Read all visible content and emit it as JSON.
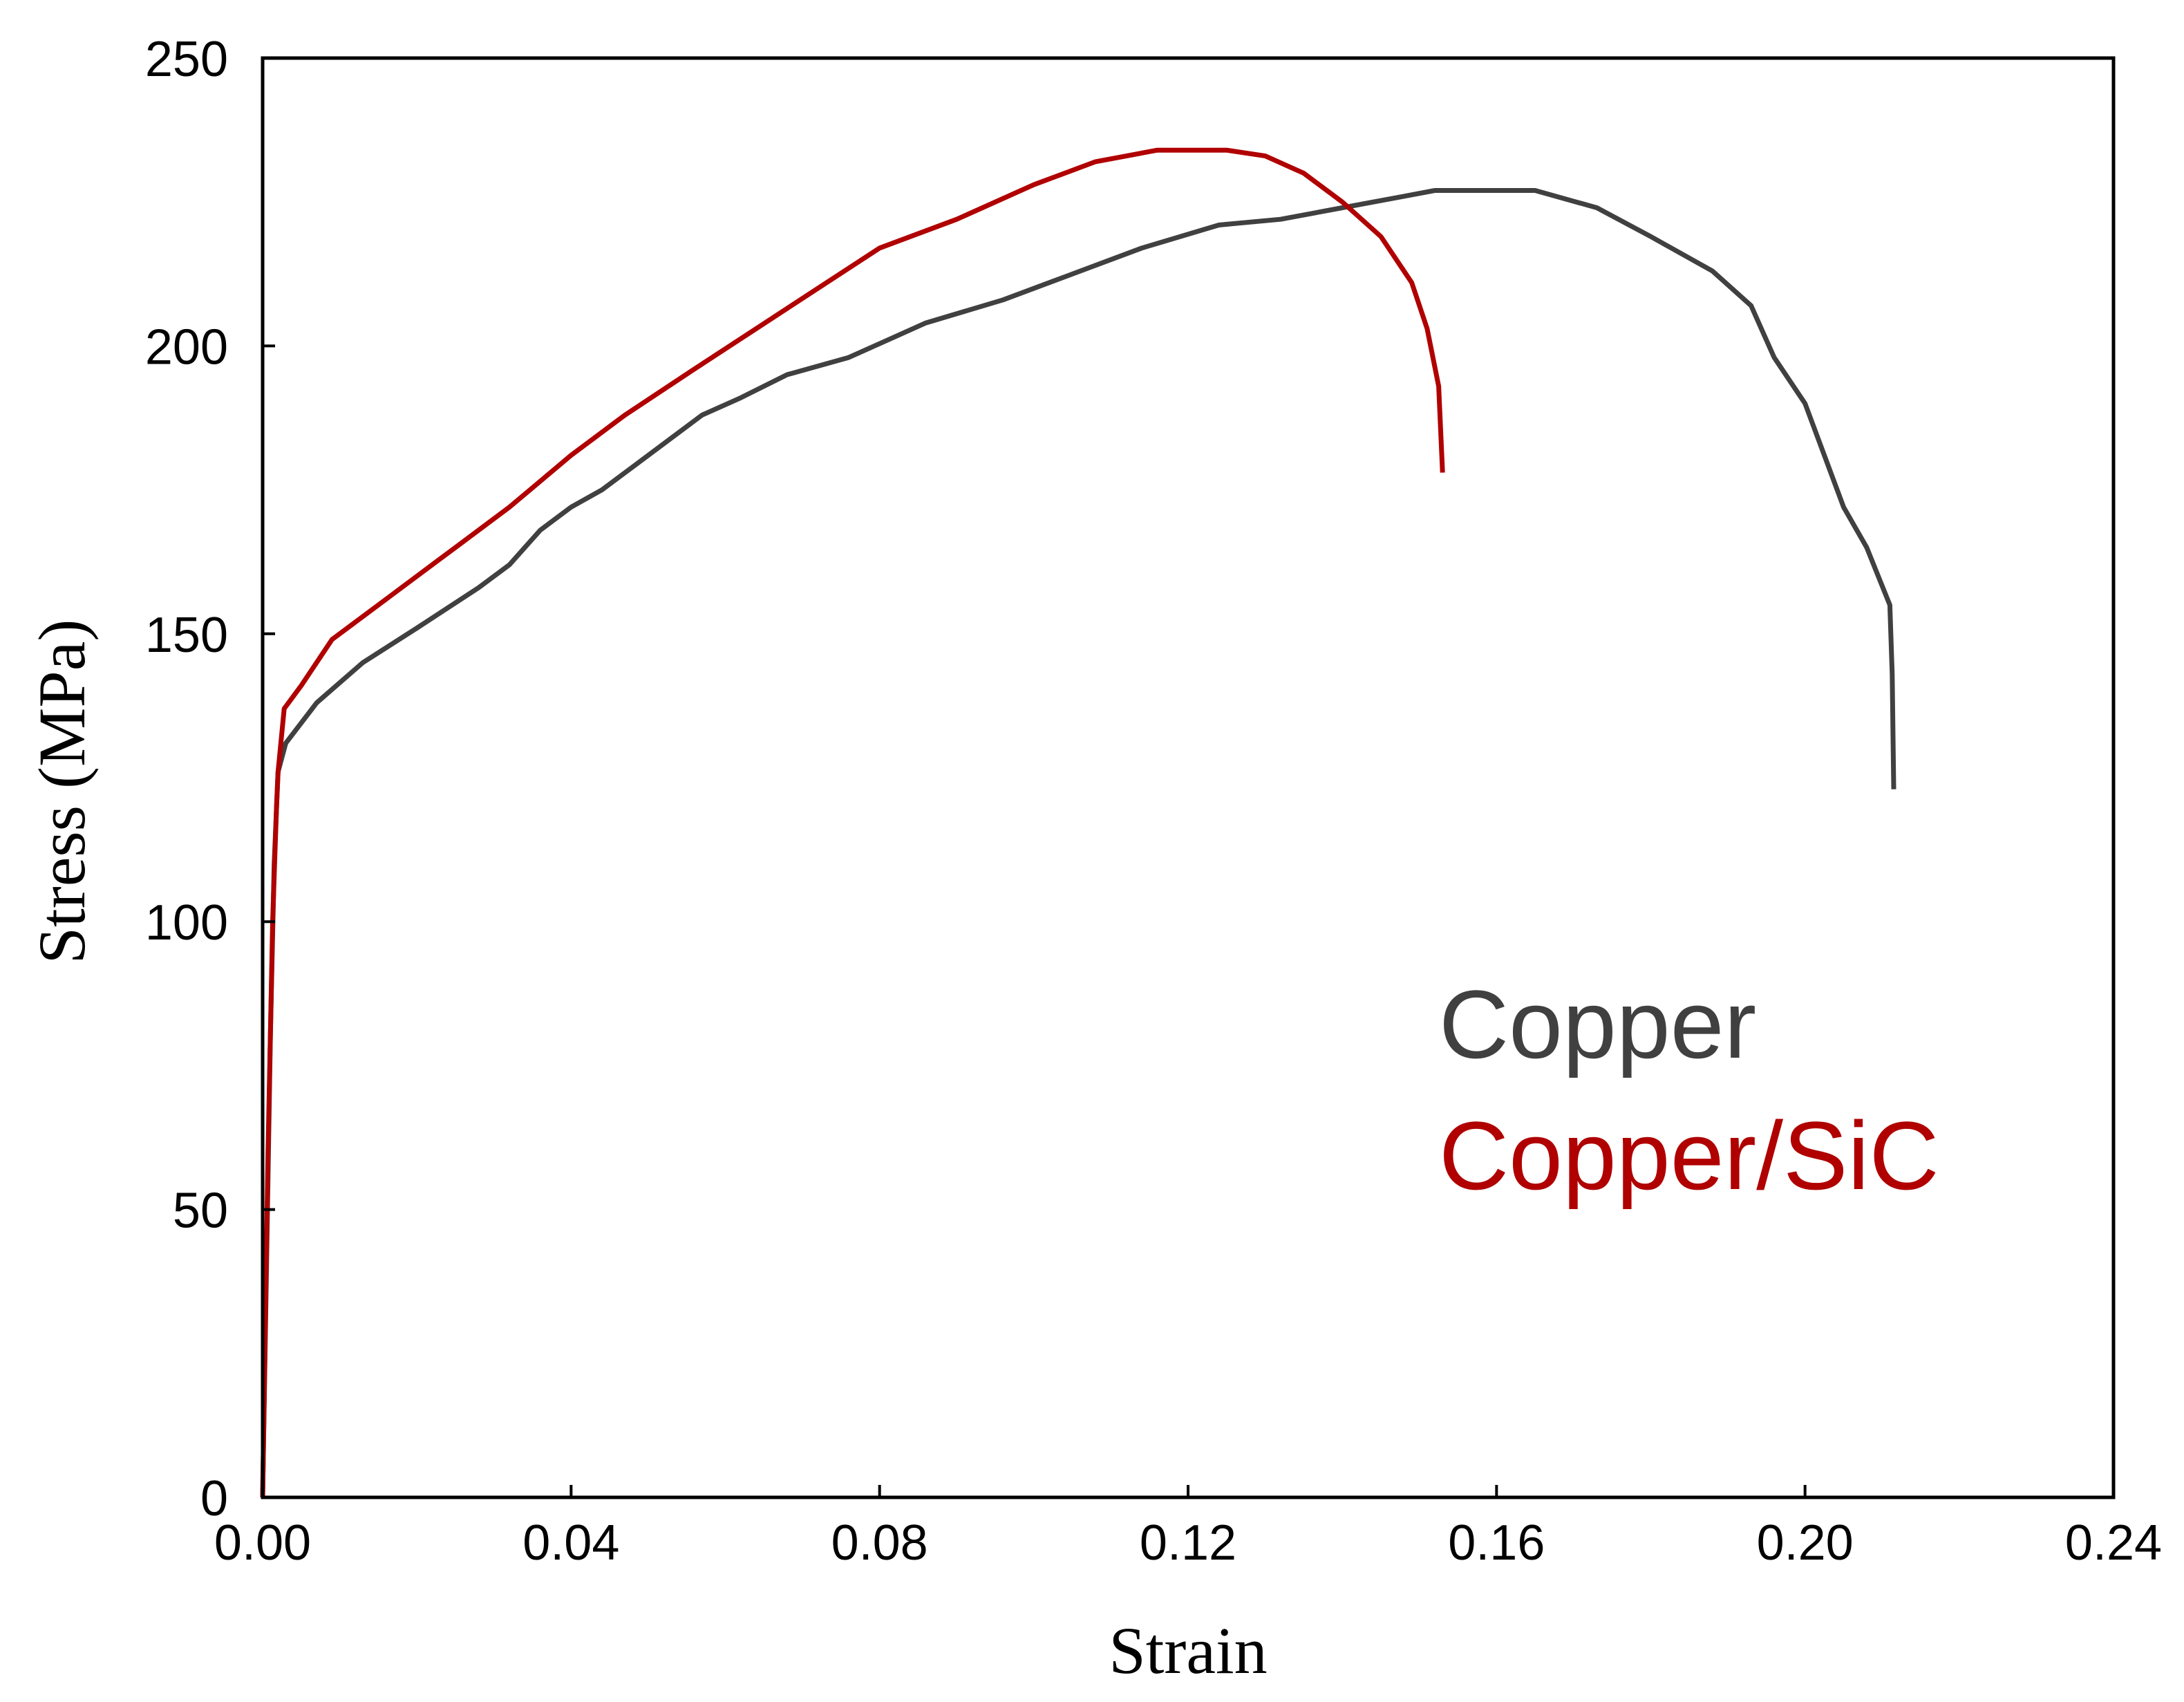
{
  "chart_data": {
    "type": "line",
    "title": "",
    "xlabel": "Strain",
    "ylabel": "Stress (MPa)",
    "xlim": [
      0,
      0.24
    ],
    "ylim": [
      0,
      250
    ],
    "x_ticks": [
      0.0,
      0.04,
      0.08,
      0.12,
      0.16,
      0.2,
      0.24
    ],
    "x_tick_labels": [
      "0.00",
      "0.04",
      "0.08",
      "0.12",
      "0.16",
      "0.20",
      "0.24"
    ],
    "y_ticks": [
      0,
      50,
      100,
      150,
      200,
      250
    ],
    "y_tick_labels": [
      "0",
      "50",
      "100",
      "150",
      "200",
      "250"
    ],
    "grid": false,
    "legend_position": "right",
    "series": [
      {
        "name": "Copper",
        "color": "#404040",
        "points": [
          [
            0.0,
            0
          ],
          [
            0.0005,
            40
          ],
          [
            0.001,
            80
          ],
          [
            0.0015,
            110
          ],
          [
            0.002,
            126
          ],
          [
            0.003,
            131
          ],
          [
            0.007,
            138
          ],
          [
            0.013,
            145
          ],
          [
            0.02,
            151
          ],
          [
            0.028,
            158
          ],
          [
            0.032,
            162
          ],
          [
            0.036,
            168
          ],
          [
            0.04,
            172
          ],
          [
            0.044,
            175
          ],
          [
            0.048,
            179
          ],
          [
            0.057,
            188
          ],
          [
            0.062,
            191
          ],
          [
            0.068,
            195
          ],
          [
            0.076,
            198
          ],
          [
            0.086,
            204
          ],
          [
            0.096,
            208
          ],
          [
            0.104,
            212
          ],
          [
            0.114,
            217
          ],
          [
            0.124,
            221
          ],
          [
            0.132,
            222
          ],
          [
            0.14,
            224
          ],
          [
            0.148,
            226
          ],
          [
            0.152,
            227
          ],
          [
            0.165,
            227
          ],
          [
            0.173,
            224
          ],
          [
            0.18,
            219
          ],
          [
            0.188,
            213
          ],
          [
            0.193,
            207
          ],
          [
            0.196,
            198
          ],
          [
            0.2,
            190
          ],
          [
            0.205,
            172
          ],
          [
            0.208,
            165
          ],
          [
            0.211,
            155
          ],
          [
            0.2113,
            143
          ],
          [
            0.2115,
            123
          ]
        ]
      },
      {
        "name": "Copper/SiC",
        "color": "#b00000",
        "points": [
          [
            0.0,
            0
          ],
          [
            0.0007,
            60
          ],
          [
            0.0013,
            100
          ],
          [
            0.0018,
            120
          ],
          [
            0.002,
            126
          ],
          [
            0.0028,
            137
          ],
          [
            0.005,
            141
          ],
          [
            0.009,
            149
          ],
          [
            0.017,
            157
          ],
          [
            0.025,
            165
          ],
          [
            0.032,
            172
          ],
          [
            0.04,
            181
          ],
          [
            0.047,
            188
          ],
          [
            0.056,
            196
          ],
          [
            0.064,
            203
          ],
          [
            0.072,
            210
          ],
          [
            0.08,
            217
          ],
          [
            0.09,
            222
          ],
          [
            0.1,
            228
          ],
          [
            0.108,
            232
          ],
          [
            0.116,
            234
          ],
          [
            0.125,
            234
          ],
          [
            0.13,
            233
          ],
          [
            0.135,
            230
          ],
          [
            0.14,
            225
          ],
          [
            0.145,
            219
          ],
          [
            0.149,
            211
          ],
          [
            0.151,
            203
          ],
          [
            0.1525,
            193
          ],
          [
            0.153,
            178
          ]
        ]
      }
    ]
  }
}
